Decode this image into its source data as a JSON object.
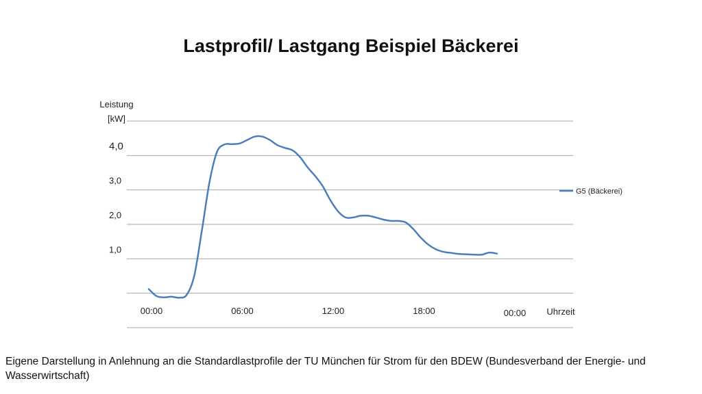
{
  "slide": {
    "title": "Lastprofil/ Lastgang Beispiel Bäckerei",
    "footnote": "Eigene Darstellung in Anlehnung an die Standardlastprofile der TU München für Strom für den BDEW (Bundesverband der Energie- und Wasserwirtschaft)"
  },
  "chart_data": {
    "type": "line",
    "title": "Lastprofil/ Lastgang Beispiel Bäckerei",
    "ylabel": "Leistung [kW]",
    "xlabel": "Uhrzeit",
    "y_ticks": [
      {
        "value": 1,
        "label": "1,0"
      },
      {
        "value": 2,
        "label": "2,0"
      },
      {
        "value": 3,
        "label": "3,0"
      },
      {
        "value": 4,
        "label": "4,0"
      }
    ],
    "x_ticks": [
      {
        "value": 0,
        "label": "00:00"
      },
      {
        "value": 6,
        "label": "06:00"
      },
      {
        "value": 12,
        "label": "12:00"
      },
      {
        "value": 18,
        "label": "18:00"
      },
      {
        "value": 24,
        "label": "00:00"
      }
    ],
    "x_range": [
      0,
      24
    ],
    "ylim": [
      -1,
      5
    ],
    "grid": true,
    "legend_position": "right",
    "series": [
      {
        "name": "G5 (Bäckerei)",
        "color": "#4a7ebb",
        "points": [
          [
            0,
            0.12
          ],
          [
            0.5,
            -0.08
          ],
          [
            1,
            -0.12
          ],
          [
            1.5,
            -0.1
          ],
          [
            2,
            -0.13
          ],
          [
            2.5,
            -0.05
          ],
          [
            3,
            0.5
          ],
          [
            3.5,
            1.8
          ],
          [
            4,
            3.2
          ],
          [
            4.5,
            4.1
          ],
          [
            5,
            4.32
          ],
          [
            5.5,
            4.33
          ],
          [
            6,
            4.35
          ],
          [
            6.5,
            4.45
          ],
          [
            7,
            4.55
          ],
          [
            7.5,
            4.55
          ],
          [
            8,
            4.45
          ],
          [
            8.5,
            4.3
          ],
          [
            9,
            4.22
          ],
          [
            9.5,
            4.15
          ],
          [
            10,
            3.95
          ],
          [
            10.5,
            3.65
          ],
          [
            11,
            3.4
          ],
          [
            11.5,
            3.1
          ],
          [
            12,
            2.7
          ],
          [
            12.5,
            2.38
          ],
          [
            13,
            2.2
          ],
          [
            13.5,
            2.2
          ],
          [
            14,
            2.25
          ],
          [
            14.5,
            2.25
          ],
          [
            15,
            2.2
          ],
          [
            15.5,
            2.14
          ],
          [
            16,
            2.1
          ],
          [
            16.5,
            2.1
          ],
          [
            17,
            2.05
          ],
          [
            17.5,
            1.85
          ],
          [
            18,
            1.6
          ],
          [
            18.5,
            1.4
          ],
          [
            19,
            1.27
          ],
          [
            19.5,
            1.2
          ],
          [
            20,
            1.17
          ],
          [
            20.5,
            1.14
          ],
          [
            21,
            1.13
          ],
          [
            21.5,
            1.12
          ],
          [
            22,
            1.12
          ],
          [
            22.5,
            1.18
          ],
          [
            23,
            1.15
          ]
        ]
      }
    ]
  }
}
